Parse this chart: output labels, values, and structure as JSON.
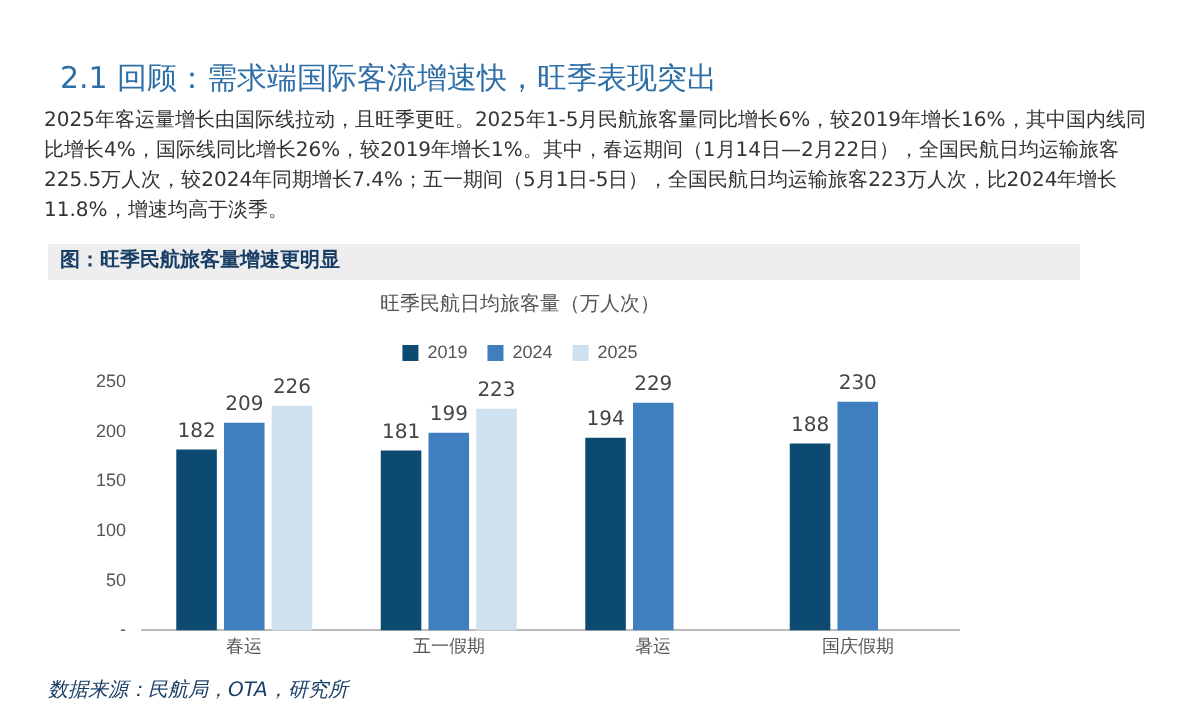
{
  "chart_data": {
    "type": "bar",
    "title": "旺季民航日均旅客量（万人次）",
    "subtitle": "图：旺季民航旅客量增速更明显",
    "categories": [
      "春运",
      "五一假期",
      "暑运",
      "国庆假期"
    ],
    "series": [
      {
        "name": "2019",
        "color": "#0d4a72",
        "values": [
          182,
          181,
          194,
          188
        ]
      },
      {
        "name": "2024",
        "color": "#3f7fc0",
        "values": [
          209,
          199,
          229,
          230
        ]
      },
      {
        "name": "2025",
        "color": "#cfe0f0",
        "values": [
          226,
          223,
          null,
          null
        ]
      }
    ],
    "ylim": [
      0,
      250
    ],
    "yticks": [
      {
        "value": 0,
        "label": "-"
      },
      50,
      100,
      150,
      200,
      250
    ],
    "grid": false,
    "legend": "top",
    "data_labels": true,
    "annotations": [
      "2.1 回顾：需求端国际客流增速快，旺季表现突出",
      "2025年客运量增长由国际线拉动，且旺季更旺。2025年1-5月民航旅客量同比增长6%，较2019年增长16%，其中国内线同比增长4%，国际线同比增长26%，较2019年增长1%。其中，春运期间（1月14日—2月22日），全国民航日均运输旅客225.5万人次，较2024年同期增长7.4%；五一期间（5月1日-5日），全国民航日均运输旅客223万人次，比2024年增长11.8%，增速均高于淡季。",
      "数据来源：民航局，OTA，研究所"
    ]
  }
}
